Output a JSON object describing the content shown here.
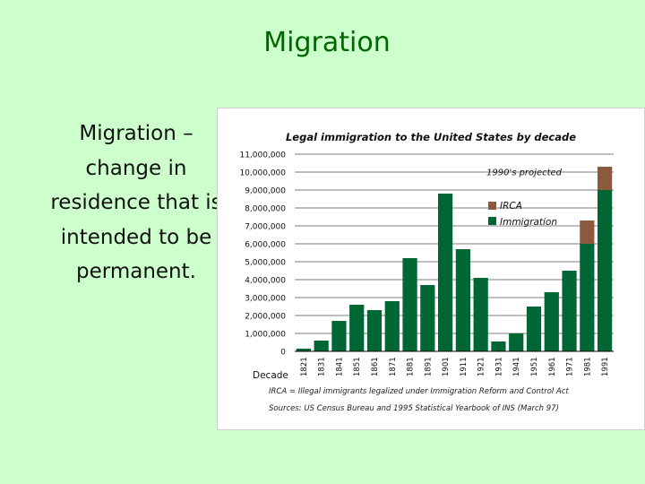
{
  "slide": {
    "title": "Migration",
    "body_text": "Migration – change in residence that is intended to be permanent."
  },
  "chart_data": {
    "type": "bar",
    "title": "Legal immigration to the United States by decade",
    "xlabel": "Decade",
    "ylabel": "",
    "ylim": [
      0,
      11000000
    ],
    "y_ticks": [
      0,
      1000000,
      2000000,
      3000000,
      4000000,
      5000000,
      6000000,
      7000000,
      8000000,
      9000000,
      10000000,
      11000000
    ],
    "y_tick_labels": [
      "0",
      "1,000,000",
      "2,000,000",
      "3,000,000",
      "4,000,000",
      "5,000,000",
      "6,000,000",
      "7,000,000",
      "8,000,000",
      "9,000,000",
      "10,000,000",
      "11,000,000"
    ],
    "categories": [
      "1821",
      "1831",
      "1841",
      "1851",
      "1861",
      "1871",
      "1881",
      "1891",
      "1901",
      "1911",
      "1921",
      "1931",
      "1941",
      "1951",
      "1961",
      "1971",
      "1981",
      "1991"
    ],
    "series": [
      {
        "name": "Immigration",
        "color": "#006633",
        "values": [
          150000,
          600000,
          1700000,
          2600000,
          2300000,
          2800000,
          5200000,
          3700000,
          8800000,
          5700000,
          4100000,
          550000,
          1000000,
          2500000,
          3300000,
          4500000,
          6000000,
          9000000
        ]
      },
      {
        "name": "IRCA",
        "color": "#8b5a3c",
        "values": [
          0,
          0,
          0,
          0,
          0,
          0,
          0,
          0,
          0,
          0,
          0,
          0,
          0,
          0,
          0,
          0,
          1300000,
          1300000
        ]
      }
    ],
    "reference_line": {
      "value": 10000000,
      "label": "1990's projected"
    },
    "legend": "upper right, inside plot",
    "grid": true,
    "footnotes": [
      "IRCA = Illegal immigrants legalized under Immigration Reform and Control Act",
      "Sources: US Census Bureau and 1995 Statistical Yearbook of INS (March 97)"
    ]
  }
}
